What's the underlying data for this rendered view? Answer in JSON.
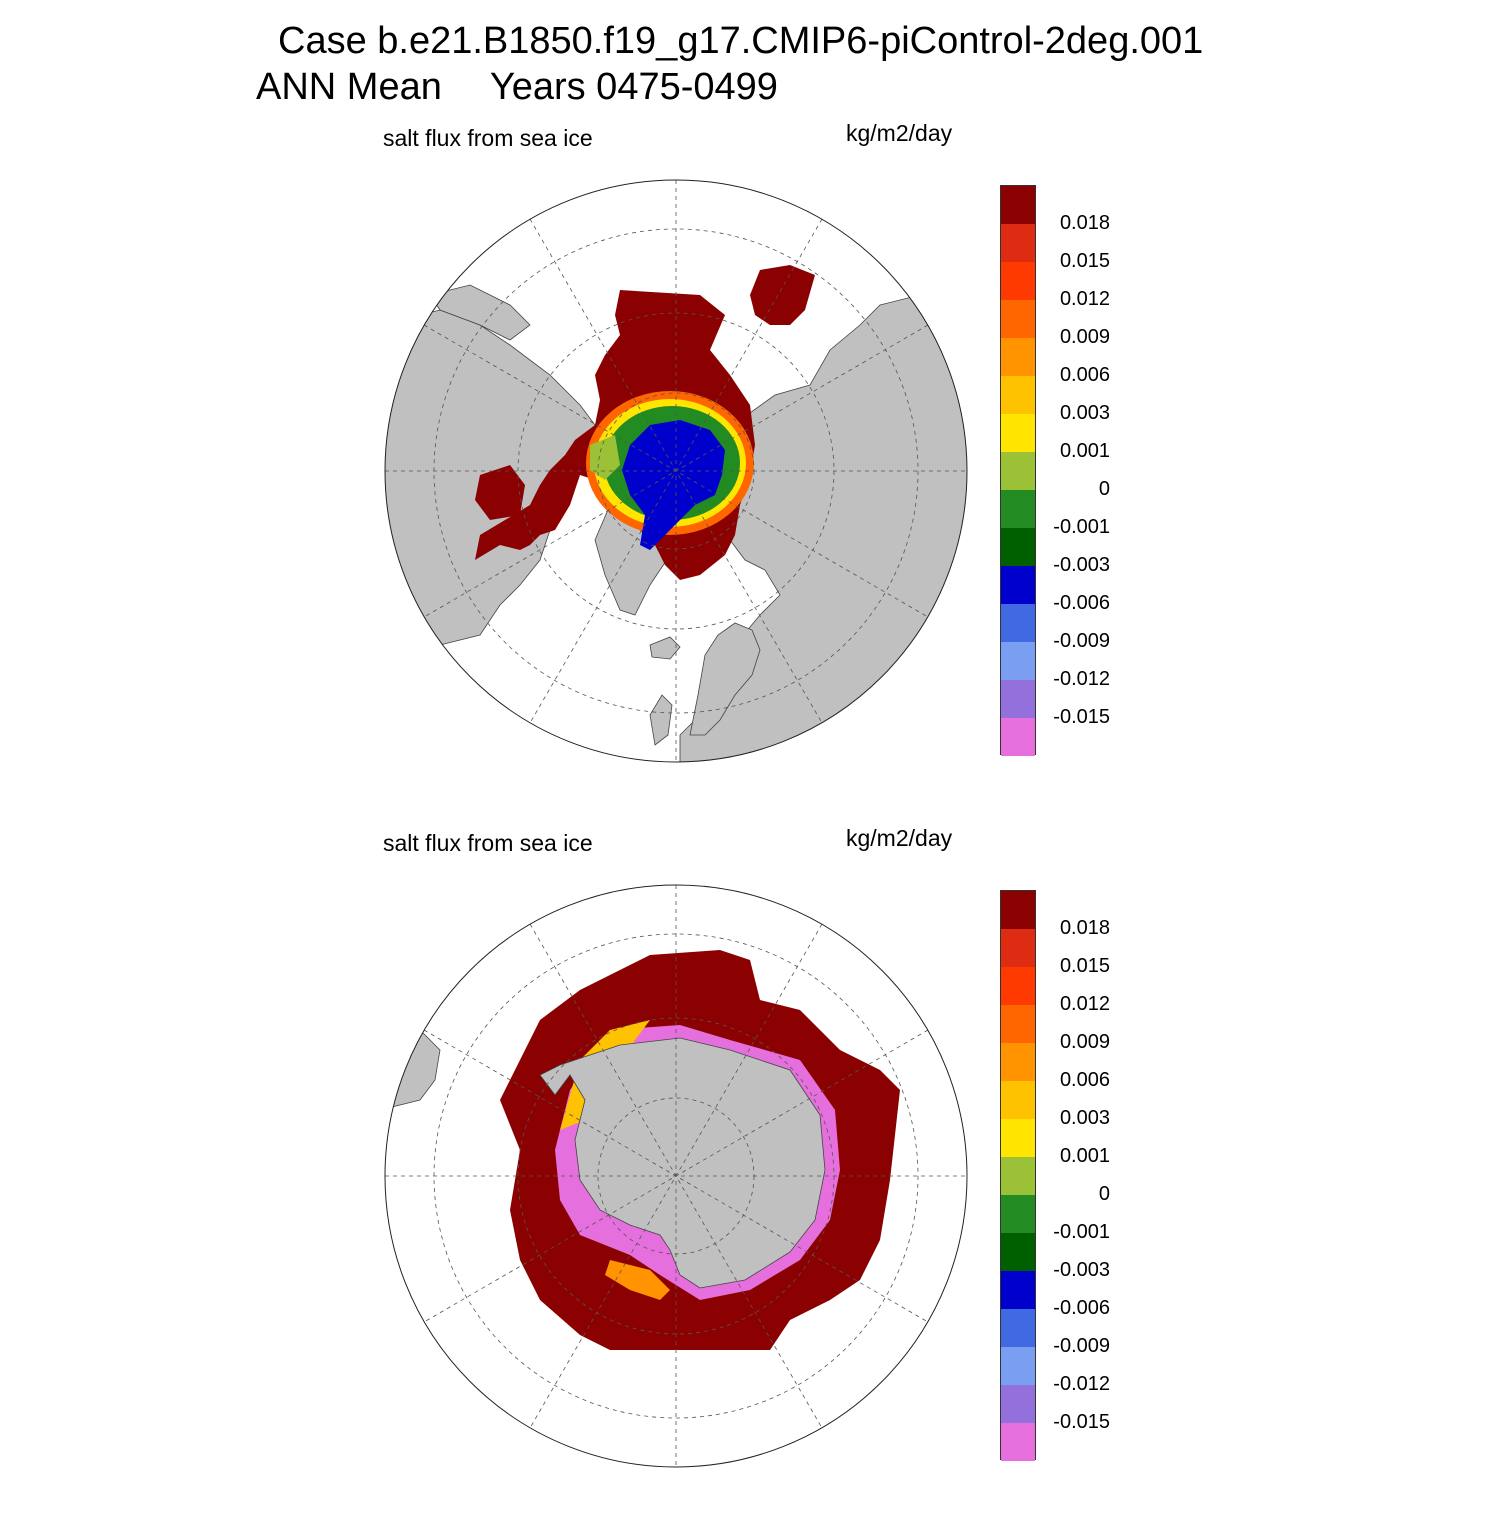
{
  "header": {
    "case_line": "Case b.e21.B1850.f19_g17.CMIP6-piControl-2deg.001",
    "period_label": "ANN Mean",
    "years_label": "Years 0475-0499"
  },
  "panels": [
    {
      "hemisphere": "north",
      "title": "salt flux from sea ice",
      "units": "kg/m2/day"
    },
    {
      "hemisphere": "south",
      "title": "salt flux from sea ice",
      "units": "kg/m2/day"
    }
  ],
  "colorbar": {
    "colors": [
      "#8b0000",
      "#dd2c12",
      "#ff3a00",
      "#ff6600",
      "#ff9400",
      "#ffc200",
      "#ffe500",
      "#9bc236",
      "#228b22",
      "#006000",
      "#0000cd",
      "#4169e1",
      "#7a9ef1",
      "#9370db",
      "#e56fdc"
    ],
    "labels": [
      "0.018",
      "0.015",
      "0.012",
      "0.009",
      "0.006",
      "0.003",
      "0.001",
      "0",
      "-0.001",
      "-0.003",
      "-0.006",
      "-0.009",
      "-0.012",
      "-0.015"
    ]
  },
  "map_colors": {
    "land": "#c0c0c0",
    "ocean": "#ffffff",
    "grid": "#555555"
  }
}
